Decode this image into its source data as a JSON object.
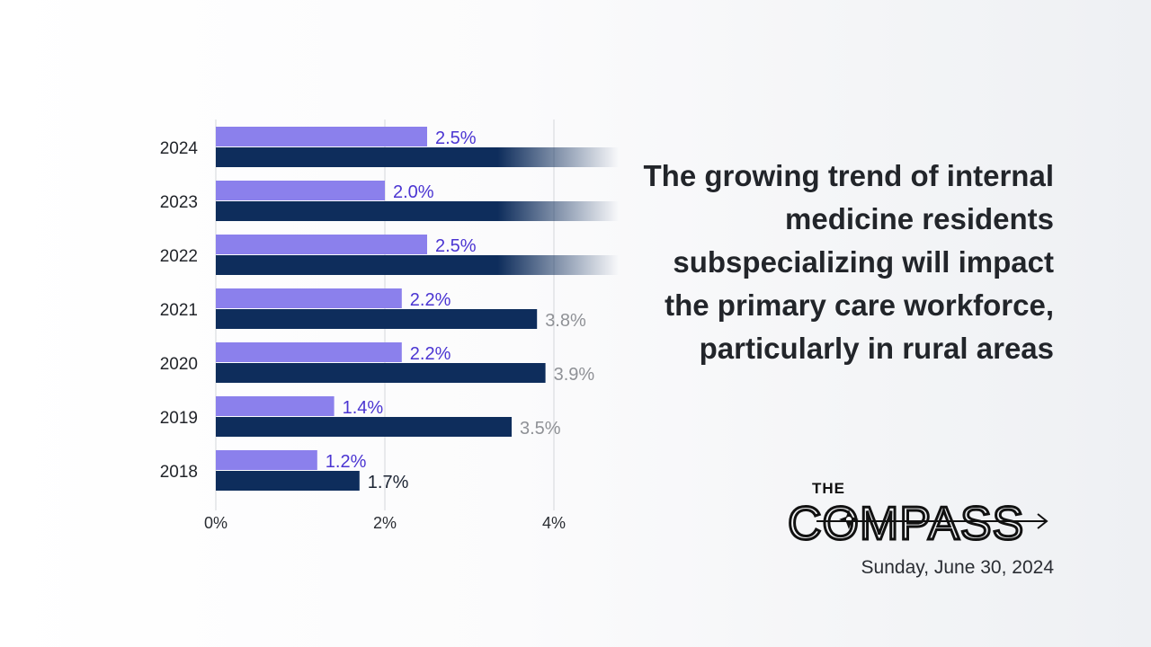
{
  "chart_data": {
    "type": "bar",
    "orientation": "horizontal",
    "categories": [
      "2024",
      "2023",
      "2022",
      "2021",
      "2020",
      "2019",
      "2018"
    ],
    "series": [
      {
        "name": "series_1",
        "color": "#8b80ec",
        "label_color": "#4b35d2",
        "values": [
          2.5,
          2.0,
          2.5,
          2.2,
          2.2,
          1.4,
          1.2
        ],
        "labels": [
          "2.5%",
          "2.0%",
          "2.5%",
          "2.2%",
          "2.2%",
          "1.4%",
          "1.2%"
        ]
      },
      {
        "name": "series_2",
        "color": "#0e2d5c",
        "label_color": "#8f9196",
        "values": [
          null,
          null,
          null,
          3.8,
          3.9,
          3.5,
          1.7
        ],
        "labels": [
          "",
          "",
          "",
          "3.8%",
          "3.9%",
          "3.5%",
          "1.7%"
        ],
        "faded": [
          true,
          true,
          true,
          false,
          false,
          false,
          false
        ]
      }
    ],
    "xticks": [
      0,
      2,
      4
    ],
    "xtick_labels": [
      "0%",
      "2%",
      "4%"
    ],
    "xlim": [
      0,
      4.7
    ],
    "xlabel": "",
    "ylabel": "",
    "grid": true
  },
  "headline": "The growing trend of internal medicine residents subspecializing will impact the primary care workforce, particularly in rural areas",
  "brand": {
    "the": "THE",
    "name": "COMPASS"
  },
  "date": "Sunday, June 30, 2024",
  "colors": {
    "accent": "#8b80ec",
    "dark_bar": "#0e2d5c",
    "text": "#22252a"
  }
}
